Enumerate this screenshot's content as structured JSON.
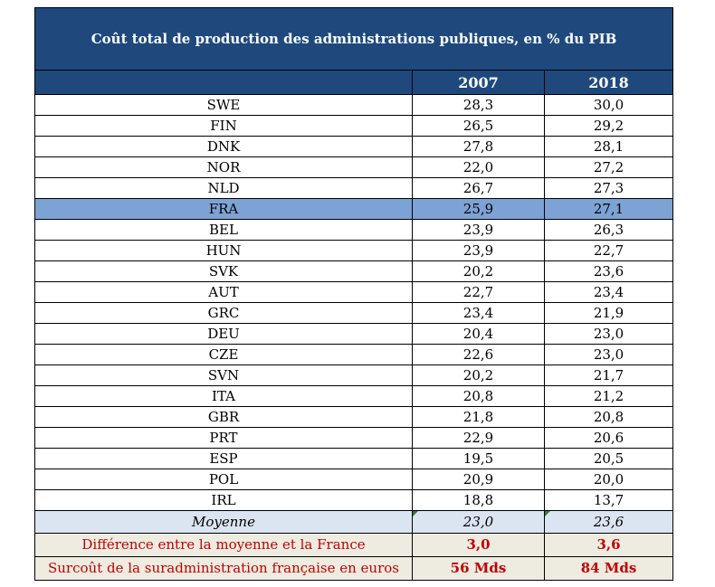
{
  "title": "Coût total de production des administrations publiques, en % du PIB",
  "columns": [
    "",
    "2007",
    "2018"
  ],
  "rows": [
    {
      "country": "SWE",
      "y2007": "28,3",
      "y2018": "30,0"
    },
    {
      "country": "FIN",
      "y2007": "26,5",
      "y2018": "29,2"
    },
    {
      "country": "DNK",
      "y2007": "27,8",
      "y2018": "28,1"
    },
    {
      "country": "NOR",
      "y2007": "22,0",
      "y2018": "27,2"
    },
    {
      "country": "NLD",
      "y2007": "26,7",
      "y2018": "27,3"
    },
    {
      "country": "FRA",
      "y2007": "25,9",
      "y2018": "27,1",
      "highlight": true
    },
    {
      "country": "BEL",
      "y2007": "23,9",
      "y2018": "26,3"
    },
    {
      "country": "HUN",
      "y2007": "23,9",
      "y2018": "22,7"
    },
    {
      "country": "SVK",
      "y2007": "20,2",
      "y2018": "23,6"
    },
    {
      "country": "AUT",
      "y2007": "22,7",
      "y2018": "23,4"
    },
    {
      "country": "GRC",
      "y2007": "23,4",
      "y2018": "21,9"
    },
    {
      "country": "DEU",
      "y2007": "20,4",
      "y2018": "23,0"
    },
    {
      "country": "CZE",
      "y2007": "22,6",
      "y2018": "23,0"
    },
    {
      "country": "SVN",
      "y2007": "20,2",
      "y2018": "21,7"
    },
    {
      "country": "ITA",
      "y2007": "20,8",
      "y2018": "21,2"
    },
    {
      "country": "GBR",
      "y2007": "21,8",
      "y2018": "20,8"
    },
    {
      "country": "PRT",
      "y2007": "22,9",
      "y2018": "20,6"
    },
    {
      "country": "ESP",
      "y2007": "19,5",
      "y2018": "20,5"
    },
    {
      "country": "POL",
      "y2007": "20,9",
      "y2018": "20,0"
    },
    {
      "country": "IRL",
      "y2007": "18,8",
      "y2018": "13,7"
    }
  ],
  "average": {
    "label": "Moyenne",
    "y2007": "23,0",
    "y2018": "23,6"
  },
  "difference": {
    "label": "Différence entre la moyenne et la France",
    "y2007": "3,0",
    "y2018": "3,6"
  },
  "overcost": {
    "label": "Surcoût de la suradministration française en euros",
    "y2007": "56 Mds",
    "y2018": "84 Mds"
  },
  "colors": {
    "header": "#1f497d",
    "highlight": "#7da2d4",
    "average_bg": "#dbe5f1",
    "footer_bg": "#eeece1",
    "footer_text": "#c00000"
  }
}
